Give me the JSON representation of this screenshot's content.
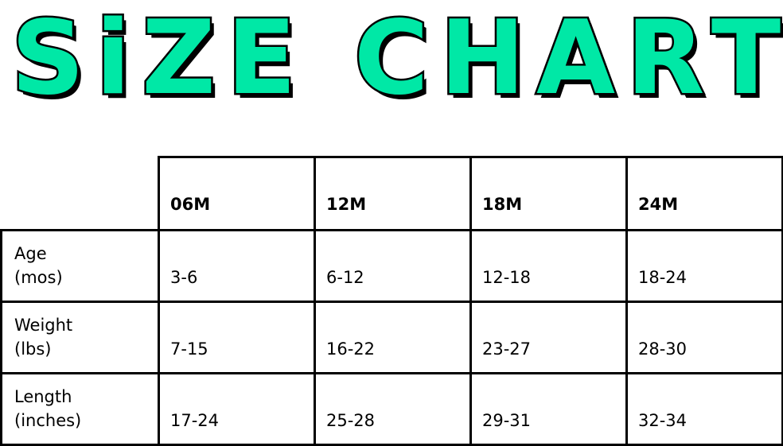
{
  "title": "SiZE CHART",
  "accent_color": "#00E8A6",
  "table": {
    "columns": [
      "06M",
      "12M",
      "18M",
      "24M"
    ],
    "rows": [
      {
        "label_line1": "Age",
        "label_line2": "(mos)",
        "values": [
          "3-6",
          "6-12",
          "12-18",
          "18-24"
        ]
      },
      {
        "label_line1": "Weight",
        "label_line2": "(lbs)",
        "values": [
          "7-15",
          "16-22",
          "23-27",
          "28-30"
        ]
      },
      {
        "label_line1": "Length",
        "label_line2": "(inches)",
        "values": [
          "17-24",
          "25-28",
          "29-31",
          "32-34"
        ]
      }
    ]
  }
}
